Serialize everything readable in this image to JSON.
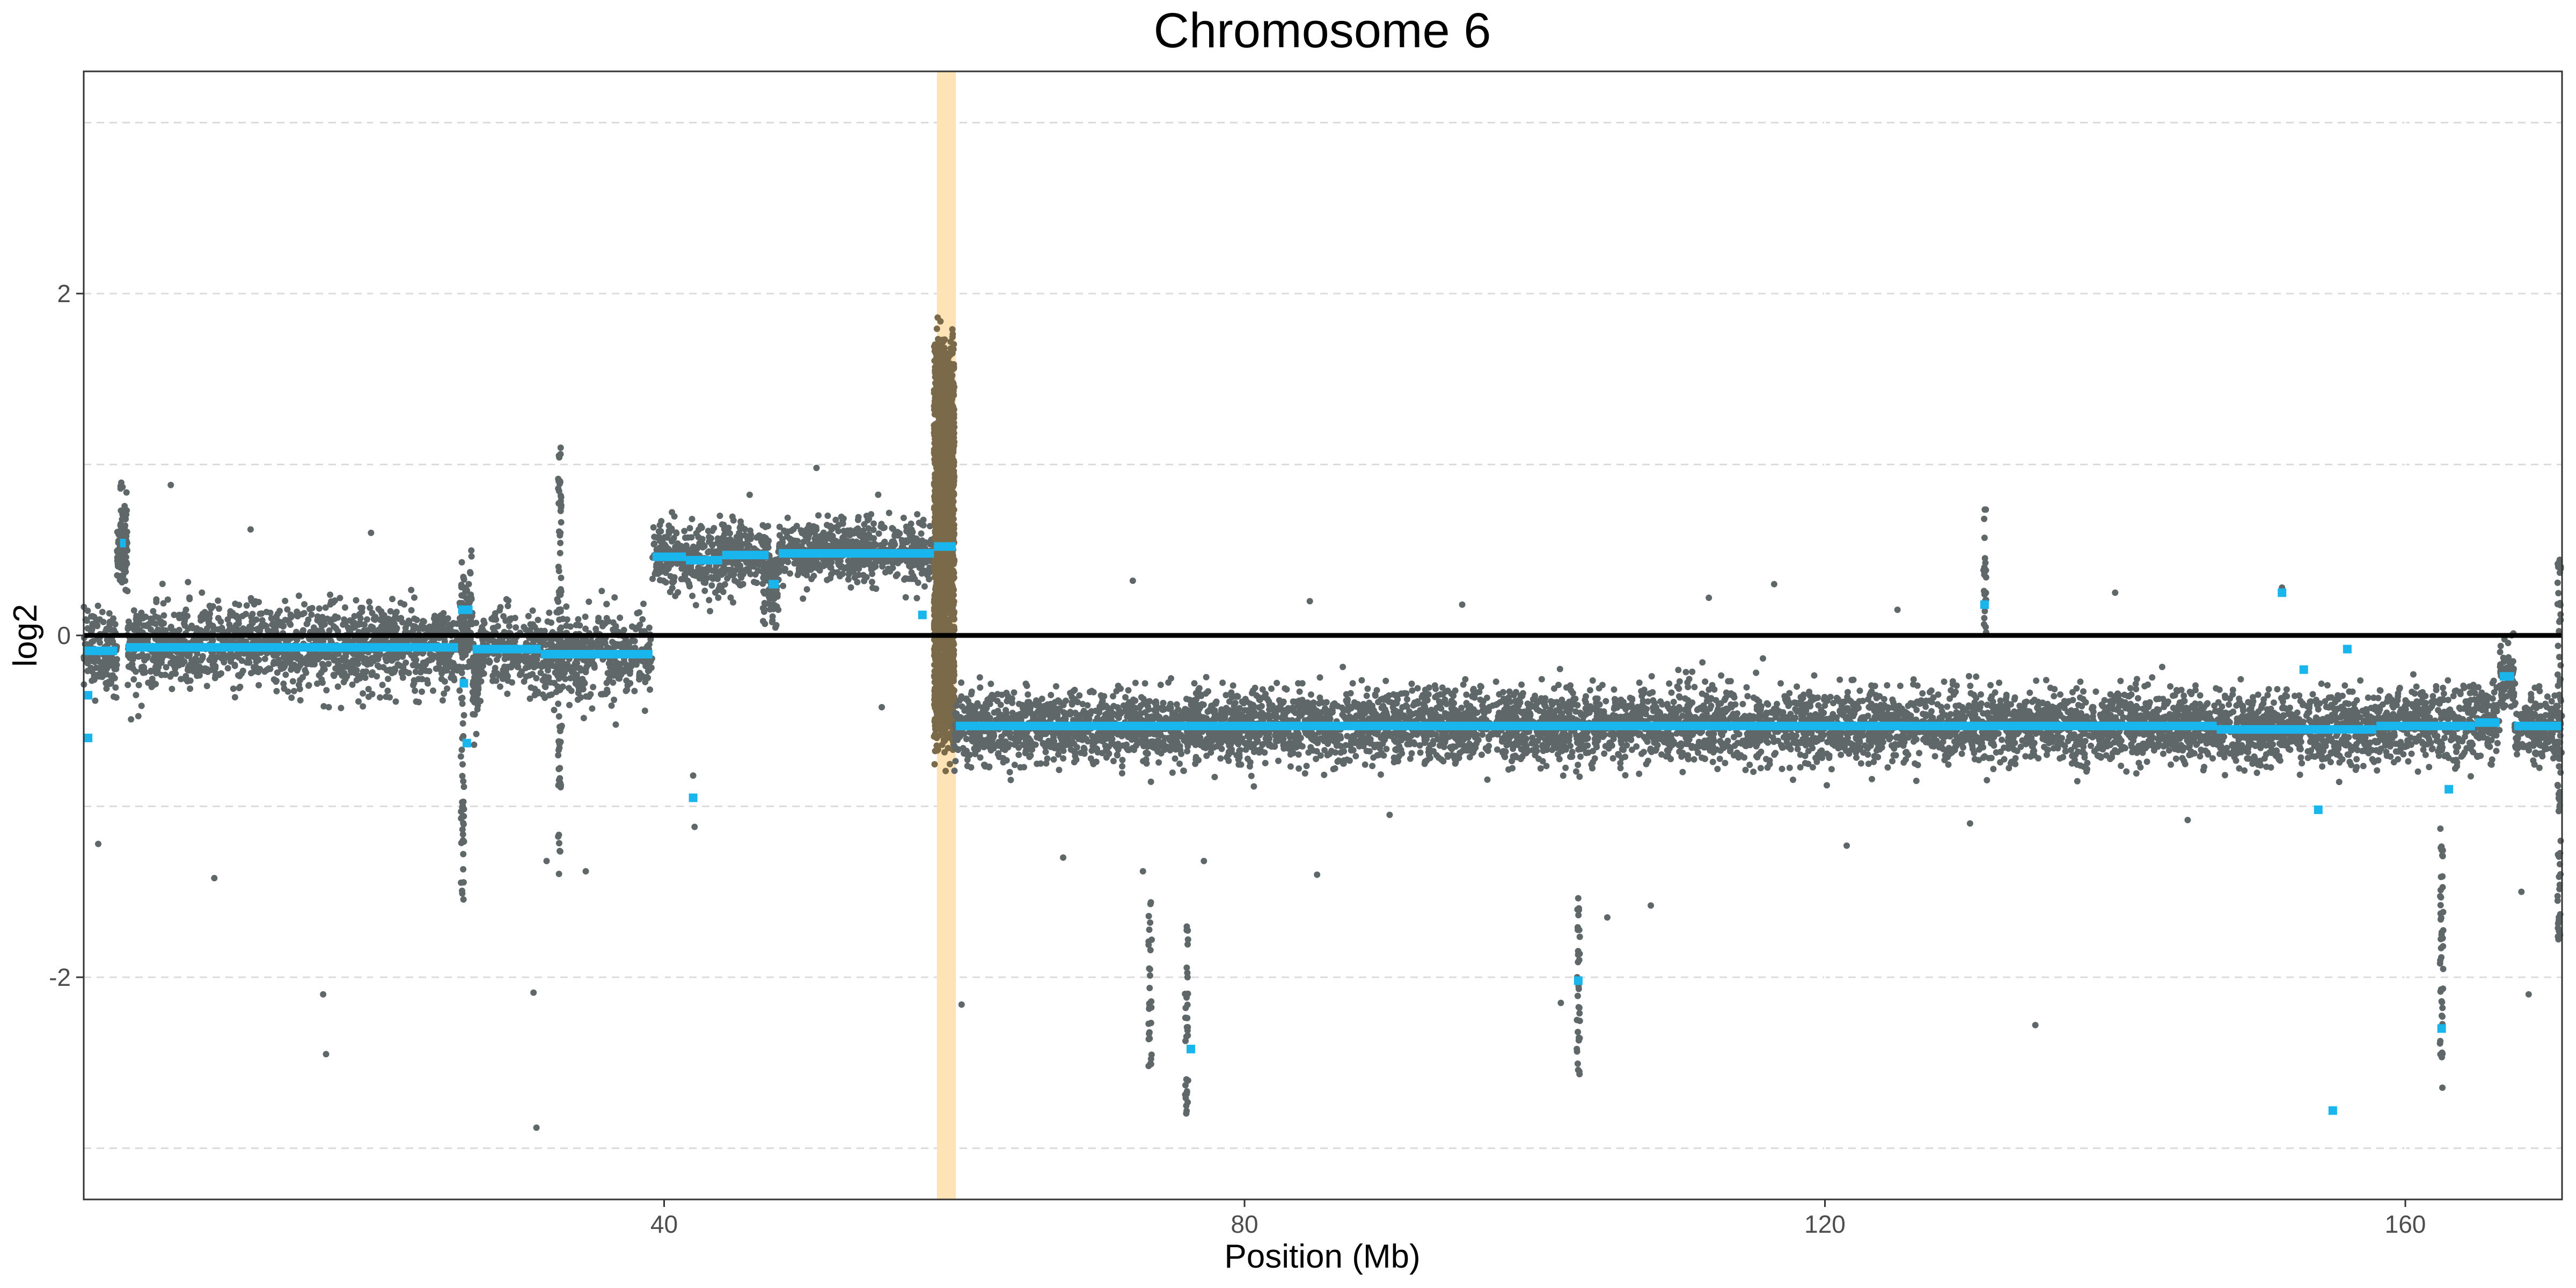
{
  "chart_data": {
    "type": "scatter",
    "title": "Chromosome 6",
    "xlabel": "Position (Mb)",
    "ylabel": "log2",
    "xlim": [
      0,
      170.8
    ],
    "ylim": [
      -3.3,
      3.3
    ],
    "x_ticks": [
      40,
      80,
      120,
      160
    ],
    "x_tick_labels": [
      "40",
      "80",
      "120",
      "160"
    ],
    "x_minor_ticks": [
      20,
      60,
      100,
      140
    ],
    "y_ticks": [
      -2,
      0,
      2
    ],
    "y_tick_labels": [
      "-2",
      "0",
      "2"
    ],
    "y_minor_ticks": [
      -3,
      -1,
      1,
      3
    ],
    "grid": "major and minor horizontal dashed; vertical gridlines in white",
    "reference_line_y": 0,
    "highlight_region": {
      "x_start": 58.8,
      "x_end": 60.1,
      "color": "#fde3b5"
    },
    "colors": {
      "points": "#5f6769",
      "segments": "#19b6ee",
      "reference": "#000000",
      "highlight_points": "#7a6a4a"
    },
    "bins": [
      {
        "x0": 0,
        "x1": 2.3,
        "center": -0.09,
        "spread": 0.22
      },
      {
        "x0": 2.3,
        "x1": 3.0,
        "center": 0.52,
        "spread": 0.2
      },
      {
        "x0": 3.0,
        "x1": 26,
        "center": -0.07,
        "spread": 0.22
      },
      {
        "x0": 26,
        "x1": 26.8,
        "center": 0.14,
        "spread": 0.25
      },
      {
        "x0": 26.8,
        "x1": 27.2,
        "center": -0.3,
        "spread": 0.25
      },
      {
        "x0": 27.2,
        "x1": 31,
        "center": -0.09,
        "spread": 0.22
      },
      {
        "x0": 31,
        "x1": 39.2,
        "center": -0.12,
        "spread": 0.22
      },
      {
        "x0": 39.2,
        "x1": 41.5,
        "center": 0.46,
        "spread": 0.18
      },
      {
        "x0": 41.5,
        "x1": 44,
        "center": 0.44,
        "spread": 0.18
      },
      {
        "x0": 44,
        "x1": 47.2,
        "center": 0.47,
        "spread": 0.18
      },
      {
        "x0": 47.2,
        "x1": 47.9,
        "center": 0.3,
        "spread": 0.2
      },
      {
        "x0": 47.9,
        "x1": 58.6,
        "center": 0.49,
        "spread": 0.16
      },
      {
        "x0": 58.6,
        "x1": 60.0,
        "center": 0.55,
        "spread": 0.7
      },
      {
        "x0": 60.0,
        "x1": 147,
        "center": -0.53,
        "spread": 0.19
      },
      {
        "x0": 147,
        "x1": 158,
        "center": -0.55,
        "spread": 0.19
      },
      {
        "x0": 158,
        "x1": 165,
        "center": -0.52,
        "spread": 0.19
      },
      {
        "x0": 165,
        "x1": 166.5,
        "center": -0.5,
        "spread": 0.19
      },
      {
        "x0": 166.5,
        "x1": 167.5,
        "center": -0.25,
        "spread": 0.19
      },
      {
        "x0": 167.5,
        "x1": 170.8,
        "center": -0.53,
        "spread": 0.19
      }
    ],
    "segments": [
      {
        "x0": 0,
        "x1": 2.3,
        "y": -0.09
      },
      {
        "x0": 2.5,
        "x1": 2.9,
        "y": 0.54
      },
      {
        "x0": 2.9,
        "x1": 25.8,
        "y": -0.07
      },
      {
        "x0": 25.8,
        "x1": 26.8,
        "y": 0.15
      },
      {
        "x0": 26.8,
        "x1": 31.5,
        "y": -0.08
      },
      {
        "x0": 31.5,
        "x1": 39.2,
        "y": -0.11
      },
      {
        "x0": 39.2,
        "x1": 41.5,
        "y": 0.46
      },
      {
        "x0": 41.5,
        "x1": 44,
        "y": 0.44
      },
      {
        "x0": 44,
        "x1": 47.2,
        "y": 0.47
      },
      {
        "x0": 47.2,
        "x1": 47.9,
        "y": 0.3
      },
      {
        "x0": 47.9,
        "x1": 58.6,
        "y": 0.48
      },
      {
        "x0": 58.6,
        "x1": 60.1,
        "y": 0.52
      },
      {
        "x0": 60.1,
        "x1": 147,
        "y": -0.53
      },
      {
        "x0": 147,
        "x1": 158,
        "y": -0.55
      },
      {
        "x0": 158,
        "x1": 164.8,
        "y": -0.53
      },
      {
        "x0": 164.8,
        "x1": 166.5,
        "y": -0.51
      },
      {
        "x0": 166.5,
        "x1": 167.5,
        "y": -0.24
      },
      {
        "x0": 167.5,
        "x1": 170.8,
        "y": -0.53
      }
    ],
    "segment_markers": [
      {
        "x": 0.3,
        "y": -0.35
      },
      {
        "x": 0.3,
        "y": -0.6
      },
      {
        "x": 26.2,
        "y": -0.28
      },
      {
        "x": 26.4,
        "y": -0.63
      },
      {
        "x": 42.0,
        "y": -0.95
      },
      {
        "x": 57.8,
        "y": 0.12
      },
      {
        "x": 76.3,
        "y": -2.42
      },
      {
        "x": 103.0,
        "y": -2.02
      },
      {
        "x": 131.0,
        "y": 0.18
      },
      {
        "x": 151.5,
        "y": 0.25
      },
      {
        "x": 153.0,
        "y": -0.2
      },
      {
        "x": 154.0,
        "y": -1.02
      },
      {
        "x": 155.0,
        "y": -2.78
      },
      {
        "x": 156.0,
        "y": -0.08
      },
      {
        "x": 162.5,
        "y": -2.3
      },
      {
        "x": 163.0,
        "y": -0.9
      }
    ],
    "outlier_columns": [
      {
        "x": 2.6,
        "y_min": 0.3,
        "y_max": 0.9
      },
      {
        "x": 26.1,
        "y_min": -1.55,
        "y_max": 0.45
      },
      {
        "x": 32.8,
        "y_min": -1.4,
        "y_max": 1.1
      },
      {
        "x": 46.9,
        "y_min": 0.05,
        "y_max": 0.55
      },
      {
        "x": 73.5,
        "y_min": -2.55,
        "y_max": -1.55
      },
      {
        "x": 76.0,
        "y_min": -2.8,
        "y_max": -1.7
      },
      {
        "x": 103.0,
        "y_min": -2.6,
        "y_max": -1.45
      },
      {
        "x": 131.0,
        "y_min": 0.0,
        "y_max": 0.75
      },
      {
        "x": 162.5,
        "y_min": -2.65,
        "y_max": -1.1
      },
      {
        "x": 170.6,
        "y_min": -1.8,
        "y_max": 0.45
      }
    ],
    "outliers": [
      {
        "x": 1.0,
        "y": -1.22
      },
      {
        "x": 6.0,
        "y": 0.88
      },
      {
        "x": 9.0,
        "y": -1.42
      },
      {
        "x": 11.5,
        "y": 0.62
      },
      {
        "x": 16.5,
        "y": -2.1
      },
      {
        "x": 16.7,
        "y": -2.45
      },
      {
        "x": 19.8,
        "y": 0.6
      },
      {
        "x": 31.0,
        "y": -2.09
      },
      {
        "x": 31.2,
        "y": -2.88
      },
      {
        "x": 31.9,
        "y": -1.32
      },
      {
        "x": 34.6,
        "y": -1.38
      },
      {
        "x": 42.0,
        "y": -0.82
      },
      {
        "x": 42.1,
        "y": -1.12
      },
      {
        "x": 50.5,
        "y": 0.98
      },
      {
        "x": 55.0,
        "y": -0.42
      },
      {
        "x": 60.5,
        "y": -2.16
      },
      {
        "x": 67.5,
        "y": -1.3
      },
      {
        "x": 72.3,
        "y": 0.32
      },
      {
        "x": 73.0,
        "y": -1.38
      },
      {
        "x": 77.2,
        "y": -1.32
      },
      {
        "x": 85.0,
        "y": -1.4
      },
      {
        "x": 84.5,
        "y": 0.2
      },
      {
        "x": 101.8,
        "y": -2.15
      },
      {
        "x": 105.0,
        "y": -1.65
      },
      {
        "x": 108.0,
        "y": -1.58
      },
      {
        "x": 116.5,
        "y": 0.3
      },
      {
        "x": 121.5,
        "y": -1.23
      },
      {
        "x": 134.5,
        "y": -2.28
      },
      {
        "x": 151.5,
        "y": 0.28
      },
      {
        "x": 168.5,
        "y": -2.1
      },
      {
        "x": 168.0,
        "y": -1.5
      },
      {
        "x": 140.0,
        "y": 0.25
      },
      {
        "x": 95.0,
        "y": 0.18
      },
      {
        "x": 112.0,
        "y": 0.22
      },
      {
        "x": 125.0,
        "y": 0.15
      },
      {
        "x": 90.0,
        "y": -1.05
      },
      {
        "x": 130.0,
        "y": -1.1
      },
      {
        "x": 145.0,
        "y": -1.08
      }
    ]
  }
}
